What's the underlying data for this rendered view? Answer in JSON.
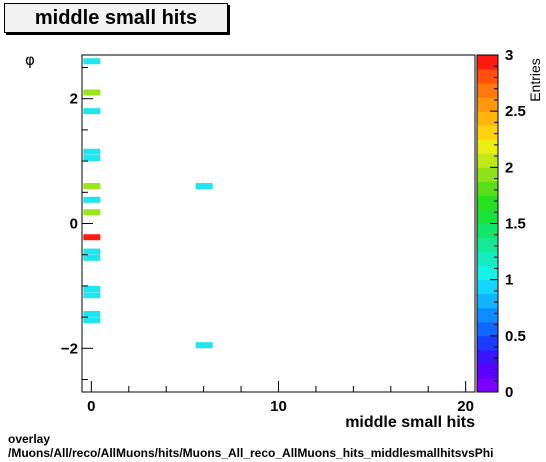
{
  "title": "middle small hits",
  "caption": {
    "line1": "overlay",
    "line2": "/Muons/All/reco/AllMuons/hits/Muons_All_reco_AllMuons_hits_middlesmallhitsvsPhi"
  },
  "chart_data": {
    "type": "heatmap",
    "title": "middle small hits",
    "xlabel": "middle small hits",
    "ylabel": "φ",
    "zlabel": "Entries",
    "xlim": [
      -0.5,
      20.5
    ],
    "ylim": [
      -2.7,
      2.7
    ],
    "zlim": [
      0,
      3
    ],
    "x_ticks": [
      0,
      10,
      20
    ],
    "y_ticks": [
      -2,
      0,
      2
    ],
    "z_ticks": [
      "0",
      "0.5",
      "1",
      "1.5",
      "2",
      "2.5",
      "3"
    ],
    "bins": [
      {
        "x": 0,
        "y": 2.6,
        "count": 1
      },
      {
        "x": 0,
        "y": 2.1,
        "count": 2
      },
      {
        "x": 0,
        "y": 1.8,
        "count": 1
      },
      {
        "x": 0,
        "y": 1.15,
        "count": 1
      },
      {
        "x": 0,
        "y": 1.05,
        "count": 1
      },
      {
        "x": 0,
        "y": 0.6,
        "count": 2
      },
      {
        "x": 0,
        "y": 0.38,
        "count": 1
      },
      {
        "x": 0,
        "y": 0.18,
        "count": 2
      },
      {
        "x": 0,
        "y": -0.22,
        "count": 3
      },
      {
        "x": 0,
        "y": -0.45,
        "count": 1
      },
      {
        "x": 0,
        "y": -0.55,
        "count": 1
      },
      {
        "x": 0,
        "y": -1.05,
        "count": 1
      },
      {
        "x": 0,
        "y": -1.15,
        "count": 1
      },
      {
        "x": 0,
        "y": -1.45,
        "count": 1
      },
      {
        "x": 0,
        "y": -1.55,
        "count": 1
      },
      {
        "x": 6,
        "y": 0.6,
        "count": 1
      },
      {
        "x": 6,
        "y": -1.95,
        "count": 1
      }
    ],
    "colors": {
      "count_1": "#1ee6ee",
      "count_2": "#9ae617",
      "count_3": "#ff1a10"
    },
    "palette": [
      "#7b00ff",
      "#5a00ff",
      "#3a14ff",
      "#1a3cff",
      "#1066ff",
      "#0e8cff",
      "#10b4ff",
      "#12d6ff",
      "#16f2e6",
      "#14ecc0",
      "#14e894",
      "#14e668",
      "#18e33c",
      "#28e01c",
      "#5ade1a",
      "#90e218",
      "#c2e816",
      "#eeee14",
      "#ffd20f",
      "#ffb40e",
      "#ff960c",
      "#ff780b",
      "#ff500c",
      "#ff1a10"
    ],
    "grid": false,
    "legend": "colorbar-right"
  }
}
